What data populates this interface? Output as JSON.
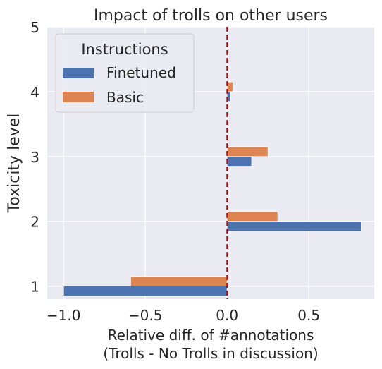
{
  "chart_data": {
    "type": "bar",
    "orientation": "horizontal",
    "title": "Impact of trolls on other users",
    "xlabel_lines": [
      "Relative diff. of #annotations",
      "(Trolls - No Trolls in discussion)"
    ],
    "ylabel": "Toxicity level",
    "categories": [
      1,
      2,
      3,
      4
    ],
    "yticks": [
      "1",
      "2",
      "3",
      "4",
      "5"
    ],
    "xticks": [
      {
        "value": -1.0,
        "label": "−1.0"
      },
      {
        "value": -0.5,
        "label": "−0.5"
      },
      {
        "value": 0.0,
        "label": "0.0"
      },
      {
        "value": 0.5,
        "label": "0.5"
      }
    ],
    "xlim": [
      -1.1,
      0.9
    ],
    "ylim": [
      0.8,
      5.0
    ],
    "reference_line": {
      "x": 0.0,
      "color": "#cc0000",
      "style": "dashed"
    },
    "legend": {
      "title": "Instructions",
      "placement": "top-left"
    },
    "series": [
      {
        "name": "Finetuned",
        "color": "#4c72b0",
        "values": [
          -1.0,
          0.82,
          0.15,
          0.02
        ]
      },
      {
        "name": "Basic",
        "color": "#dd8452",
        "values": [
          -0.59,
          0.31,
          0.25,
          0.035
        ]
      }
    ],
    "grid": true,
    "background": "#eaeaf2"
  }
}
